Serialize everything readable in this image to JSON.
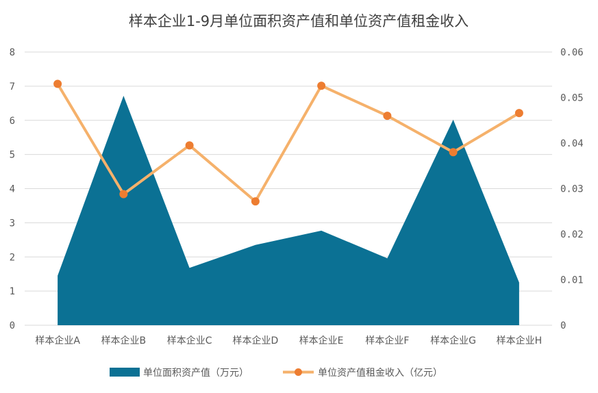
{
  "chart_data": {
    "type": "area+line",
    "title": "样本企业1-9月单位面积资产值和单位资产值租金收入",
    "categories": [
      "样本企业A",
      "样本企业B",
      "样本企业C",
      "样本企业D",
      "样本企业E",
      "样本企业F",
      "样本企业G",
      "样本企业H"
    ],
    "y_left": {
      "range": [
        0,
        8
      ],
      "ticks": [
        "0",
        "1",
        "2",
        "3",
        "4",
        "5",
        "6",
        "7",
        "8"
      ]
    },
    "y_right": {
      "range": [
        0,
        0.06
      ],
      "ticks": [
        "0",
        "0.01",
        "0.02",
        "0.03",
        "0.04",
        "0.05",
        "0.06"
      ]
    },
    "grid": "horizontal",
    "legend_position": "bottom",
    "series": [
      {
        "name": "单位面积资产值（万元）",
        "type": "area",
        "axis": "left",
        "color": "#0b7194",
        "values": [
          1.45,
          6.72,
          1.68,
          2.35,
          2.77,
          1.96,
          6.02,
          1.25
        ]
      },
      {
        "name": "单位资产值租金收入（亿元）",
        "type": "line",
        "axis": "right",
        "line_color": "#f5b16b",
        "marker_color": "#ed7d31",
        "values": [
          0.053,
          0.0288,
          0.0395,
          0.0272,
          0.0526,
          0.046,
          0.038,
          0.0466
        ]
      }
    ]
  }
}
